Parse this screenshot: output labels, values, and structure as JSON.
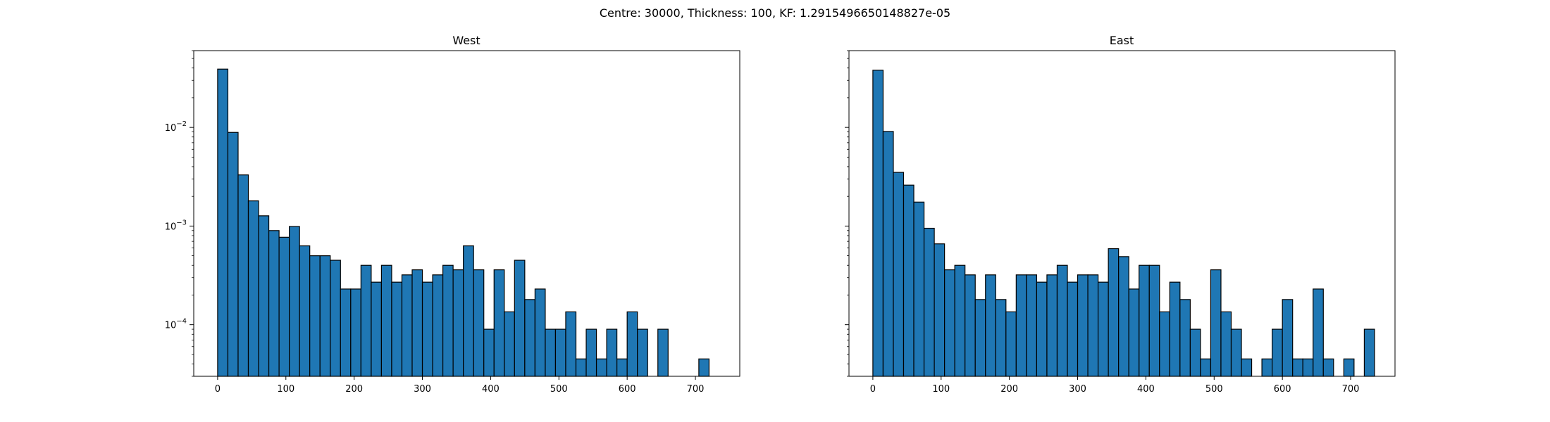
{
  "figure": {
    "suptitle": "Centre: 30000, Thickness: 100, KF: 1.2915496650148827e-05"
  },
  "colors": {
    "bar_fill": "#1f77b4",
    "bar_edge": "#000000",
    "axes": "#000000",
    "background": "#ffffff"
  },
  "chart_data": [
    {
      "type": "bar",
      "title": "West",
      "yscale": "log",
      "bin_width": 15,
      "bin_start": 0,
      "xlim": [
        -35,
        765
      ],
      "ylim": [
        3e-05,
        0.06
      ],
      "xticks": [
        0,
        100,
        200,
        300,
        400,
        500,
        600,
        700
      ],
      "yticks": [
        0.0001,
        0.001,
        0.01
      ],
      "ytick_labels": [
        "10−4",
        "10−3",
        "10−2"
      ],
      "values": [
        0.039,
        0.0089,
        0.0033,
        0.0018,
        0.00127,
        0.0009,
        0.00077,
        0.00099,
        0.00063,
        0.0005,
        0.0005,
        0.00045,
        0.00023,
        0.00023,
        0.0004,
        0.00027,
        0.0004,
        0.00027,
        0.00032,
        0.00036,
        0.00027,
        0.00032,
        0.0004,
        0.00036,
        0.00063,
        0.00036,
        9e-05,
        0.00036,
        0.000135,
        0.00045,
        0.00018,
        0.00023,
        9e-05,
        9e-05,
        0.000135,
        4.5e-05,
        9e-05,
        4.5e-05,
        9e-05,
        4.5e-05,
        0.000135,
        9e-05,
        0,
        9e-05,
        0,
        0,
        0,
        4.5e-05
      ]
    },
    {
      "type": "bar",
      "title": "East",
      "yscale": "log",
      "bin_width": 15,
      "bin_start": 0,
      "xlim": [
        -35,
        765
      ],
      "ylim": [
        3e-05,
        0.06
      ],
      "xticks": [
        0,
        100,
        200,
        300,
        400,
        500,
        600,
        700
      ],
      "yticks": [
        0.0001,
        0.001,
        0.01
      ],
      "ytick_labels": [
        "",
        "",
        ""
      ],
      "values": [
        0.038,
        0.0091,
        0.0035,
        0.0026,
        0.00175,
        0.00095,
        0.00066,
        0.00036,
        0.0004,
        0.00032,
        0.00018,
        0.00032,
        0.00018,
        0.000135,
        0.00032,
        0.00032,
        0.00027,
        0.00032,
        0.0004,
        0.00027,
        0.00032,
        0.00032,
        0.00027,
        0.00059,
        0.00049,
        0.00023,
        0.0004,
        0.0004,
        0.000135,
        0.00027,
        0.00018,
        9e-05,
        4.5e-05,
        0.00036,
        0.000135,
        9e-05,
        4.5e-05,
        0,
        4.5e-05,
        9e-05,
        0.00018,
        4.5e-05,
        4.5e-05,
        0.00023,
        4.5e-05,
        0,
        4.5e-05,
        0,
        9e-05
      ]
    }
  ]
}
